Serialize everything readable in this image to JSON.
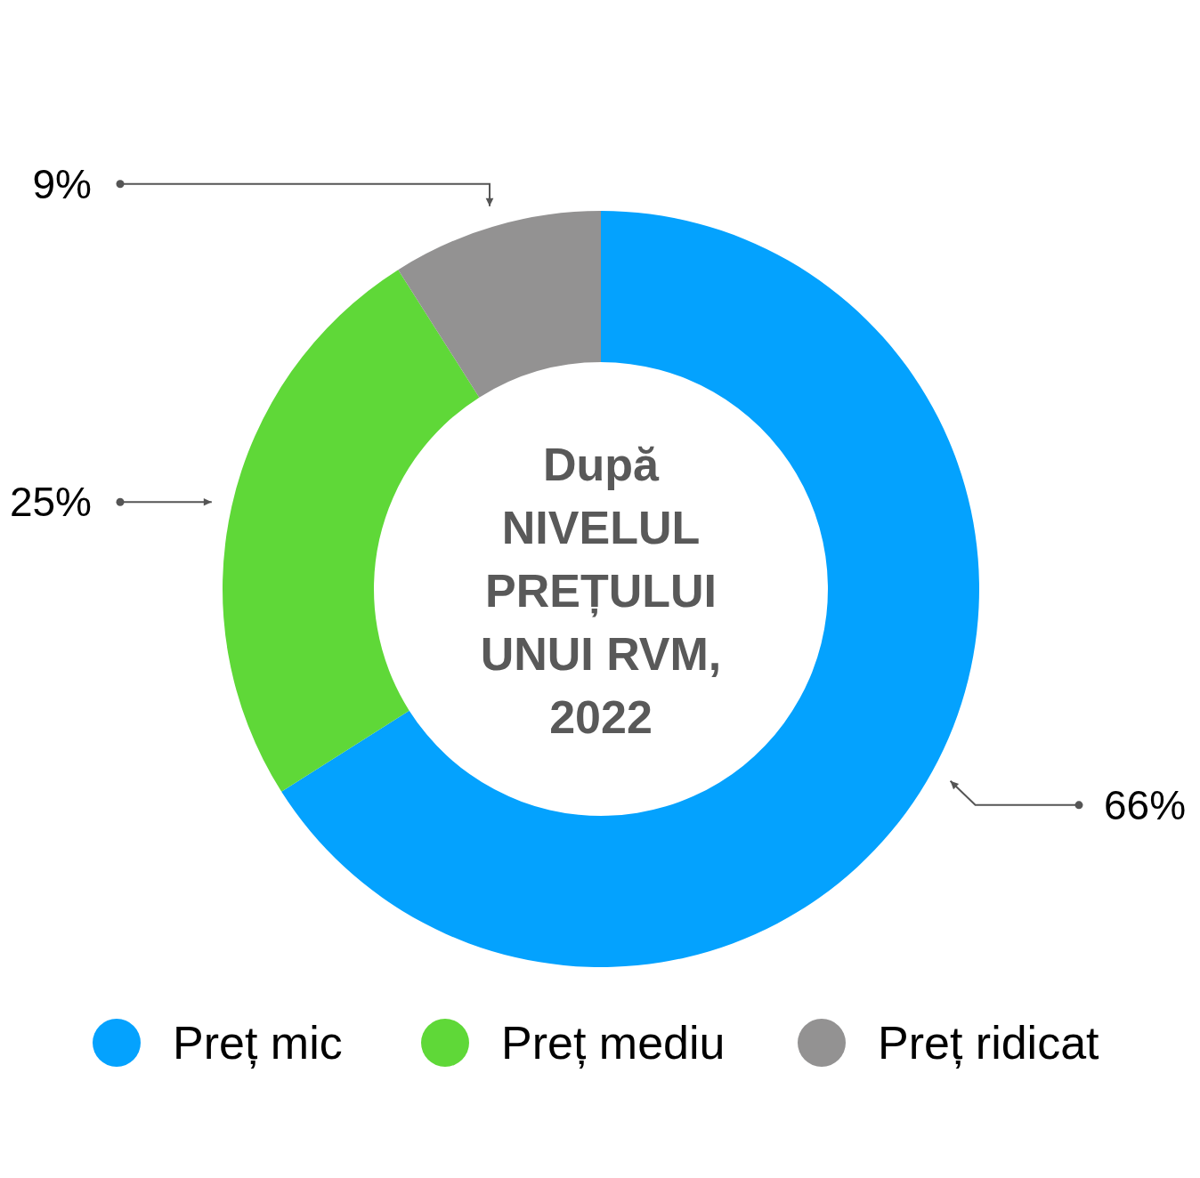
{
  "chart_data": {
    "type": "donut",
    "title": "După\nNIVELUL\nPREȚULUI\nUNUI RVM,\n2022",
    "categories": [
      "Preț mic",
      "Preț mediu",
      "Preț ridicat"
    ],
    "values": [
      66,
      25,
      9
    ],
    "colors": [
      "#04a2fe",
      "#5fd838",
      "#939292"
    ],
    "value_labels": [
      "66%",
      "25%",
      "9%"
    ],
    "legend": "bottom"
  }
}
